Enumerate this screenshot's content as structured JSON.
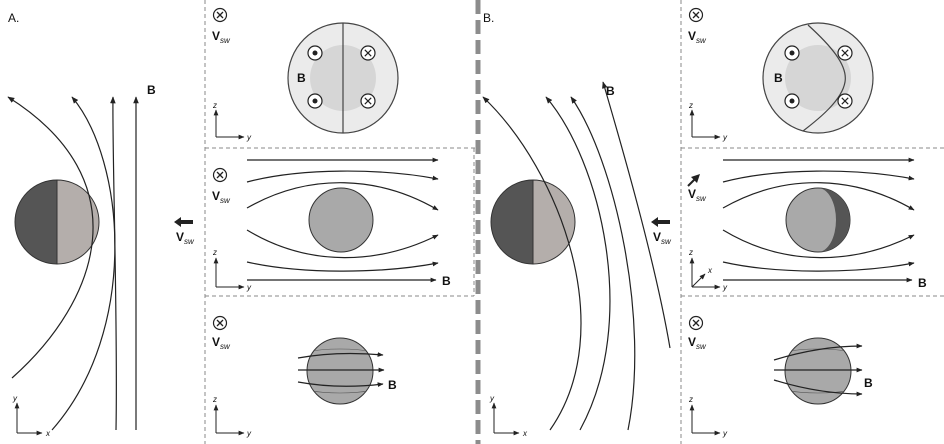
{
  "panels": {
    "a": {
      "label": "A."
    },
    "b": {
      "label": "B."
    }
  },
  "labels": {
    "field": "B",
    "velocity_main": "V",
    "velocity_sub": "sw"
  },
  "axes": {
    "x": "x",
    "y": "y",
    "z": "z"
  },
  "symbols": {
    "into_page": "x-in-circle-icon",
    "out_of_page": "dot-in-circle-icon"
  },
  "colors": {
    "planet_night": "#555555",
    "planet_day": "#b4aeab",
    "sphere_gray": "#a9a9a9",
    "disk_outer": "#ebebeb",
    "disk_inner": "#d6d6d6",
    "separator": "#8c8c8c",
    "dashed_border": "#888888"
  }
}
